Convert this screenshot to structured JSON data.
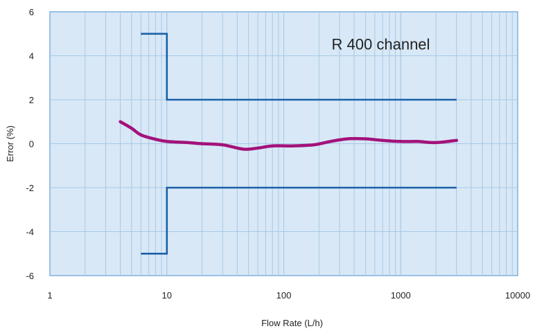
{
  "chart_data": {
    "type": "line",
    "title": "R 400 channel",
    "xlabel": "Flow Rate (L/h)",
    "ylabel": "Error (%)",
    "x_scale": "log",
    "xlim": [
      1,
      10000
    ],
    "ylim": [
      -6,
      6
    ],
    "grid": true,
    "x_ticks": [
      1,
      10,
      100,
      1000,
      10000
    ],
    "x_tick_labels": [
      "1",
      "10",
      "100",
      "1000",
      "10000"
    ],
    "y_ticks": [
      -6,
      -4,
      -2,
      0,
      2,
      4,
      6
    ],
    "y_tick_labels": [
      "-6",
      "-4",
      "-2",
      "0",
      "2",
      "4",
      "6"
    ],
    "series": [
      {
        "color": "#1a5fa8",
        "style": "step",
        "x": [
          6,
          10,
          10,
          3000
        ],
        "y": [
          5,
          5,
          2,
          2
        ]
      },
      {
        "color": "#1a5fa8",
        "style": "step",
        "x": [
          6,
          10,
          10,
          3000
        ],
        "y": [
          -5,
          -5,
          -2,
          -2
        ]
      },
      {
        "color": "#a3127a",
        "style": "smooth",
        "x": [
          4,
          5,
          6,
          8,
          10,
          15,
          20,
          30,
          45,
          60,
          80,
          120,
          180,
          250,
          350,
          500,
          700,
          1000,
          1400,
          2000,
          3000
        ],
        "y": [
          1.0,
          0.7,
          0.4,
          0.2,
          0.1,
          0.05,
          0.0,
          -0.05,
          -0.25,
          -0.2,
          -0.1,
          -0.1,
          -0.05,
          0.1,
          0.22,
          0.22,
          0.15,
          0.1,
          0.1,
          0.05,
          0.15
        ]
      }
    ],
    "colors": {
      "plot_background": "#d8e8f6",
      "grid": "#a8c8e6",
      "axis": "#7fb0dd"
    }
  }
}
